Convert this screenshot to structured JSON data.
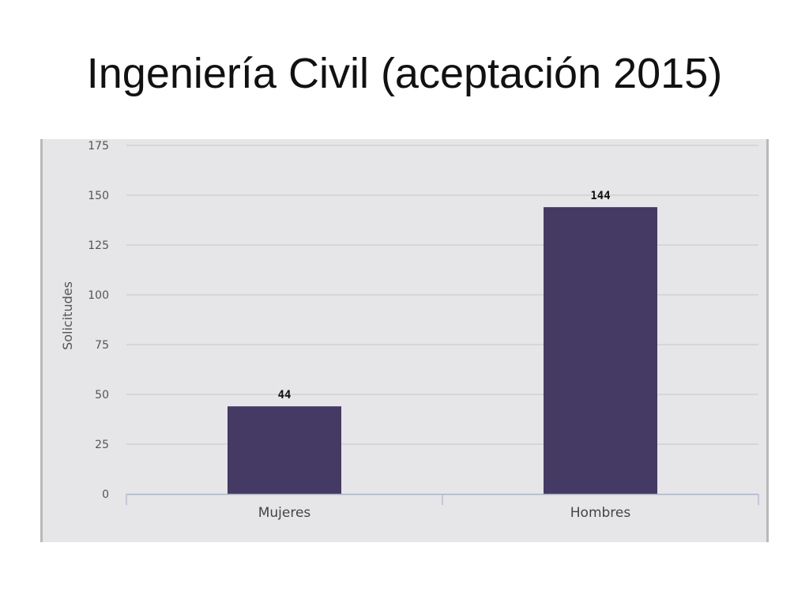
{
  "slide": {
    "title": "Ingeniería Civil (aceptación 2015)"
  },
  "chart_data": {
    "type": "bar",
    "categories": [
      "Mujeres",
      "Hombres"
    ],
    "values": [
      44,
      144
    ],
    "data_labels": [
      "44",
      "144"
    ],
    "title": "",
    "xlabel": "",
    "ylabel": "Solicitudes",
    "ylim": [
      0,
      175
    ],
    "yticks": [
      0,
      25,
      50,
      75,
      100,
      125,
      150,
      175
    ],
    "grid": true,
    "legend": "none",
    "colors": {
      "bar": "#443a63",
      "plot_background": "#e6e5e8",
      "gridline": "#c6c6c8",
      "axis": "#a9b6cc"
    }
  }
}
